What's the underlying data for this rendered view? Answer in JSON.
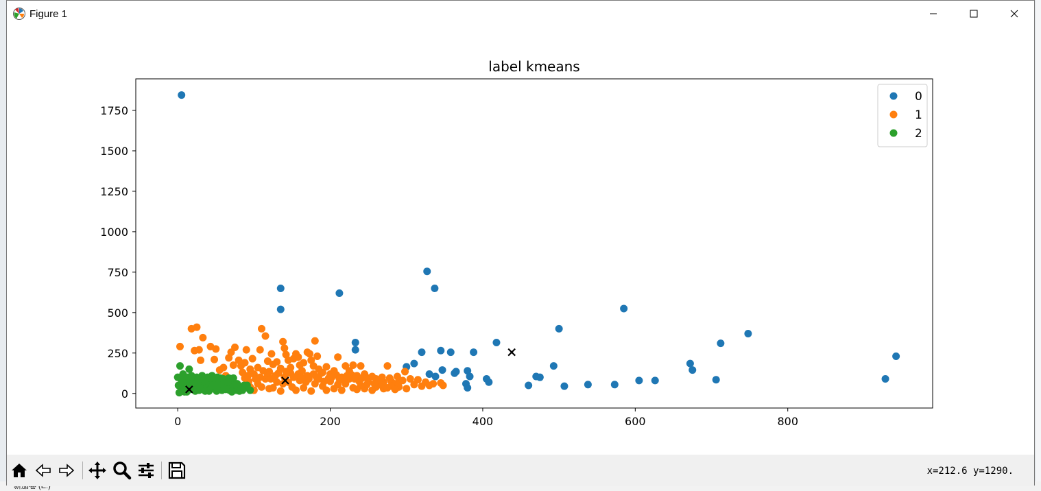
{
  "window": {
    "title": "Figure 1"
  },
  "desktop": {
    "bottom_text": "新加卷 (E:)"
  },
  "toolbar": {
    "tools": [
      "home-icon",
      "back-icon",
      "forward-icon",
      "pan-icon",
      "zoom-icon",
      "configure-subplots-icon",
      "save-icon"
    ],
    "coords": "x=212.6 y=1290."
  },
  "chart_data": {
    "type": "scatter",
    "title": "label kmeans",
    "xlabel": "",
    "ylabel": "",
    "xlim": [
      -55,
      990
    ],
    "ylim": [
      -90,
      1945
    ],
    "xticks": [
      0,
      200,
      400,
      600,
      800
    ],
    "yticks": [
      0,
      250,
      500,
      750,
      1000,
      1250,
      1500,
      1750
    ],
    "legend_position": "top-right",
    "colors": {
      "0": "#1f77b4",
      "1": "#ff7f0e",
      "2": "#2ca02c",
      "centroid": "#000000"
    },
    "series": [
      {
        "name": "0",
        "points": [
          [
            5,
            1845
          ],
          [
            135,
            650
          ],
          [
            135,
            520
          ],
          [
            212,
            620
          ],
          [
            327,
            755
          ],
          [
            337,
            650
          ],
          [
            233,
            315
          ],
          [
            233,
            270
          ],
          [
            300,
            165
          ],
          [
            310,
            185
          ],
          [
            320,
            255
          ],
          [
            330,
            120
          ],
          [
            338,
            105
          ],
          [
            345,
            265
          ],
          [
            347,
            145
          ],
          [
            358,
            255
          ],
          [
            363,
            125
          ],
          [
            365,
            135
          ],
          [
            378,
            60
          ],
          [
            380,
            140
          ],
          [
            380,
            35
          ],
          [
            383,
            105
          ],
          [
            388,
            255
          ],
          [
            405,
            90
          ],
          [
            408,
            70
          ],
          [
            418,
            315
          ],
          [
            460,
            50
          ],
          [
            470,
            105
          ],
          [
            475,
            100
          ],
          [
            493,
            170
          ],
          [
            500,
            400
          ],
          [
            507,
            45
          ],
          [
            538,
            55
          ],
          [
            573,
            55
          ],
          [
            585,
            525
          ],
          [
            605,
            80
          ],
          [
            626,
            80
          ],
          [
            672,
            185
          ],
          [
            675,
            145
          ],
          [
            706,
            85
          ],
          [
            712,
            310
          ],
          [
            748,
            370
          ],
          [
            928,
            90
          ],
          [
            942,
            230
          ]
        ]
      },
      {
        "name": "1",
        "points": [
          [
            3,
            290
          ],
          [
            18,
            400
          ],
          [
            25,
            410
          ],
          [
            22,
            265
          ],
          [
            28,
            270
          ],
          [
            33,
            345
          ],
          [
            30,
            205
          ],
          [
            43,
            290
          ],
          [
            50,
            275
          ],
          [
            48,
            210
          ],
          [
            55,
            145
          ],
          [
            60,
            160
          ],
          [
            63,
            110
          ],
          [
            67,
            220
          ],
          [
            70,
            255
          ],
          [
            73,
            175
          ],
          [
            75,
            285
          ],
          [
            80,
            205
          ],
          [
            83,
            170
          ],
          [
            88,
            190
          ],
          [
            90,
            270
          ],
          [
            95,
            150
          ],
          [
            98,
            215
          ],
          [
            100,
            120
          ],
          [
            105,
            160
          ],
          [
            108,
            270
          ],
          [
            110,
            400
          ],
          [
            115,
            355
          ],
          [
            118,
            200
          ],
          [
            120,
            135
          ],
          [
            123,
            245
          ],
          [
            125,
            180
          ],
          [
            130,
            195
          ],
          [
            135,
            155
          ],
          [
            138,
            320
          ],
          [
            140,
            280
          ],
          [
            142,
            240
          ],
          [
            145,
            205
          ],
          [
            148,
            160
          ],
          [
            152,
            215
          ],
          [
            155,
            245
          ],
          [
            158,
            225
          ],
          [
            160,
            175
          ],
          [
            163,
            140
          ],
          [
            165,
            190
          ],
          [
            170,
            255
          ],
          [
            173,
            245
          ],
          [
            175,
            205
          ],
          [
            178,
            170
          ],
          [
            180,
            325
          ],
          [
            183,
            230
          ],
          [
            185,
            150
          ],
          [
            190,
            130
          ],
          [
            195,
            165
          ],
          [
            200,
            120
          ],
          [
            205,
            140
          ],
          [
            210,
            225
          ],
          [
            215,
            100
          ],
          [
            220,
            170
          ],
          [
            225,
            140
          ],
          [
            230,
            175
          ],
          [
            235,
            110
          ],
          [
            240,
            170
          ],
          [
            245,
            120
          ],
          [
            250,
            95
          ],
          [
            255,
            105
          ],
          [
            260,
            90
          ],
          [
            265,
            85
          ],
          [
            270,
            70
          ],
          [
            275,
            170
          ],
          [
            280,
            75
          ],
          [
            285,
            60
          ],
          [
            290,
            70
          ],
          [
            295,
            80
          ],
          [
            298,
            135
          ],
          [
            305,
            90
          ],
          [
            315,
            85
          ],
          [
            325,
            70
          ],
          [
            335,
            60
          ],
          [
            345,
            65
          ],
          [
            348,
            50
          ],
          [
            105,
            60
          ],
          [
            110,
            40
          ],
          [
            115,
            90
          ],
          [
            120,
            30
          ],
          [
            130,
            70
          ],
          [
            140,
            100
          ],
          [
            150,
            40
          ],
          [
            160,
            80
          ],
          [
            170,
            110
          ],
          [
            180,
            60
          ],
          [
            190,
            45
          ],
          [
            200,
            75
          ],
          [
            210,
            55
          ],
          [
            220,
            60
          ],
          [
            230,
            35
          ],
          [
            240,
            50
          ],
          [
            250,
            70
          ],
          [
            260,
            40
          ],
          [
            270,
            30
          ],
          [
            280,
            45
          ],
          [
            290,
            40
          ],
          [
            300,
            30
          ],
          [
            310,
            55
          ],
          [
            320,
            45
          ],
          [
            330,
            50
          ],
          [
            95,
            40
          ],
          [
            100,
            20
          ],
          [
            125,
            35
          ],
          [
            135,
            15
          ],
          [
            145,
            70
          ],
          [
            155,
            20
          ],
          [
            165,
            35
          ],
          [
            175,
            15
          ],
          [
            185,
            90
          ],
          [
            195,
            20
          ],
          [
            205,
            30
          ],
          [
            215,
            20
          ],
          [
            225,
            90
          ],
          [
            235,
            25
          ],
          [
            245,
            30
          ],
          [
            255,
            20
          ],
          [
            265,
            55
          ],
          [
            275,
            35
          ],
          [
            285,
            25
          ],
          [
            88,
            95
          ],
          [
            93,
            75
          ],
          [
            108,
            100
          ],
          [
            118,
            115
          ],
          [
            128,
            110
          ],
          [
            138,
            60
          ],
          [
            148,
            125
          ],
          [
            158,
            120
          ],
          [
            168,
            70
          ],
          [
            178,
            120
          ],
          [
            188,
            125
          ],
          [
            198,
            95
          ],
          [
            208,
            115
          ],
          [
            218,
            80
          ],
          [
            228,
            115
          ],
          [
            238,
            75
          ],
          [
            248,
            55
          ],
          [
            258,
            60
          ],
          [
            268,
            100
          ],
          [
            278,
            95
          ],
          [
            288,
            105
          ],
          [
            85,
            130
          ],
          [
            92,
            110
          ],
          [
            102,
            90
          ],
          [
            112,
            140
          ],
          [
            122,
            90
          ],
          [
            132,
            125
          ],
          [
            142,
            135
          ],
          [
            152,
            100
          ],
          [
            162,
            100
          ],
          [
            172,
            90
          ],
          [
            182,
            100
          ],
          [
            192,
            75
          ],
          [
            202,
            100
          ],
          [
            212,
            90
          ],
          [
            222,
            110
          ],
          [
            232,
            90
          ],
          [
            242,
            95
          ]
        ]
      },
      {
        "name": "2",
        "points": [
          [
            3,
            170
          ],
          [
            15,
            150
          ],
          [
            0,
            100
          ],
          [
            5,
            60
          ],
          [
            10,
            80
          ],
          [
            20,
            30
          ],
          [
            25,
            100
          ],
          [
            30,
            60
          ],
          [
            35,
            90
          ],
          [
            40,
            40
          ],
          [
            45,
            110
          ],
          [
            50,
            70
          ],
          [
            55,
            50
          ],
          [
            60,
            90
          ],
          [
            65,
            40
          ],
          [
            70,
            60
          ],
          [
            75,
            30
          ],
          [
            80,
            45
          ],
          [
            85,
            20
          ],
          [
            90,
            35
          ],
          [
            95,
            20
          ],
          [
            5,
            20
          ],
          [
            12,
            10
          ],
          [
            18,
            110
          ],
          [
            22,
            70
          ],
          [
            28,
            20
          ],
          [
            32,
            110
          ],
          [
            38,
            20
          ],
          [
            42,
            80
          ],
          [
            48,
            30
          ],
          [
            52,
            100
          ],
          [
            58,
            20
          ],
          [
            62,
            70
          ],
          [
            68,
            20
          ],
          [
            72,
            80
          ],
          [
            78,
            60
          ],
          [
            82,
            30
          ],
          [
            8,
            40
          ],
          [
            14,
            50
          ],
          [
            24,
            45
          ],
          [
            34,
            35
          ],
          [
            44,
            60
          ],
          [
            54,
            35
          ],
          [
            64,
            55
          ],
          [
            74,
            45
          ],
          [
            2,
            5
          ],
          [
            7,
            120
          ],
          [
            11,
            30
          ],
          [
            17,
            85
          ],
          [
            27,
            85
          ],
          [
            37,
            65
          ],
          [
            47,
            90
          ],
          [
            57,
            75
          ],
          [
            67,
            95
          ],
          [
            77,
            20
          ],
          [
            87,
            50
          ],
          [
            1,
            50
          ],
          [
            4,
            90
          ],
          [
            9,
            10
          ],
          [
            13,
            100
          ],
          [
            19,
            60
          ],
          [
            23,
            15
          ],
          [
            29,
            40
          ],
          [
            33,
            75
          ],
          [
            39,
            100
          ],
          [
            41,
            15
          ],
          [
            46,
            50
          ],
          [
            51,
            15
          ],
          [
            56,
            95
          ],
          [
            61,
            35
          ],
          [
            66,
            70
          ],
          [
            71,
            10
          ],
          [
            76,
            55
          ],
          [
            81,
            15
          ],
          [
            86,
            35
          ],
          [
            91,
            50
          ],
          [
            6,
            75
          ],
          [
            16,
            25
          ],
          [
            26,
            65
          ],
          [
            36,
            15
          ],
          [
            43,
            95
          ],
          [
            53,
            55
          ],
          [
            63,
            25
          ],
          [
            73,
            95
          ]
        ]
      },
      {
        "name": "centroid",
        "points": [
          [
            15,
            25
          ],
          [
            141,
            80
          ],
          [
            438,
            255
          ]
        ]
      }
    ]
  }
}
